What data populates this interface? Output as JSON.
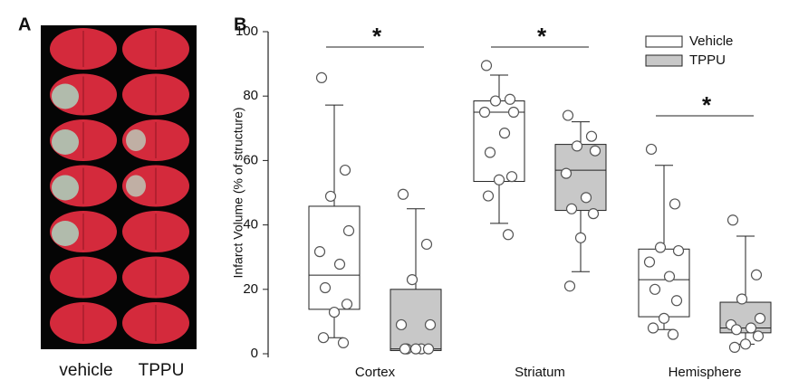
{
  "panel_a": {
    "label": "A",
    "captions": [
      "vehicle",
      "TPPU"
    ]
  },
  "chart_data": {
    "type": "box",
    "panel_label": "B",
    "y_label": "Infarct Volume (% of structure)",
    "categories": [
      "Cortex",
      "Striatum",
      "Hemisphere"
    ],
    "ylim": [
      0,
      100
    ],
    "yticks": [
      0,
      20,
      40,
      60,
      80,
      100
    ],
    "legend": "top-right",
    "annotations": [
      "*",
      "*",
      "*"
    ],
    "series": [
      {
        "name": "Vehicle",
        "color": "#ffffff",
        "boxes": [
          {
            "whislo": 5,
            "q1": 13.8,
            "med": 24.4,
            "q3": 45.8,
            "whishi": 77.2
          },
          {
            "whislo": 40.5,
            "q1": 53.5,
            "med": 75,
            "q3": 78.5,
            "whishi": 86.5
          },
          {
            "whislo": 7.5,
            "q1": 11.5,
            "med": 23,
            "q3": 32.5,
            "whishi": 58.5
          }
        ],
        "points": [
          [
            85.7,
            57,
            48.9,
            38.2,
            31.7,
            27.8,
            20.5,
            15.4,
            12.9,
            5,
            3.4
          ],
          [
            89.5,
            79,
            78.5,
            75,
            75,
            68.5,
            62.5,
            55,
            54,
            49,
            37
          ],
          [
            63.5,
            46.5,
            33,
            32,
            28.5,
            24,
            20,
            16.5,
            11,
            8,
            6
          ]
        ]
      },
      {
        "name": "TPPU",
        "color": "#c8c8c8",
        "boxes": [
          {
            "whislo": 1,
            "q1": 1,
            "med": 1.5,
            "q3": 20,
            "whishi": 45
          },
          {
            "whislo": 25.5,
            "q1": 44.5,
            "med": 57,
            "q3": 65,
            "whishi": 72
          },
          {
            "whislo": 3,
            "q1": 6.5,
            "med": 8,
            "q3": 16,
            "whishi": 36.5
          }
        ],
        "points": [
          [
            49.5,
            34,
            23,
            9,
            9,
            1.5,
            1.5,
            1.5,
            1.5,
            1.5
          ],
          [
            74,
            67.5,
            64.5,
            63,
            56,
            48.5,
            45,
            43.5,
            36,
            21
          ],
          [
            41.5,
            24.5,
            17,
            11,
            9,
            8,
            7.5,
            5.5,
            3,
            2
          ]
        ]
      }
    ]
  }
}
